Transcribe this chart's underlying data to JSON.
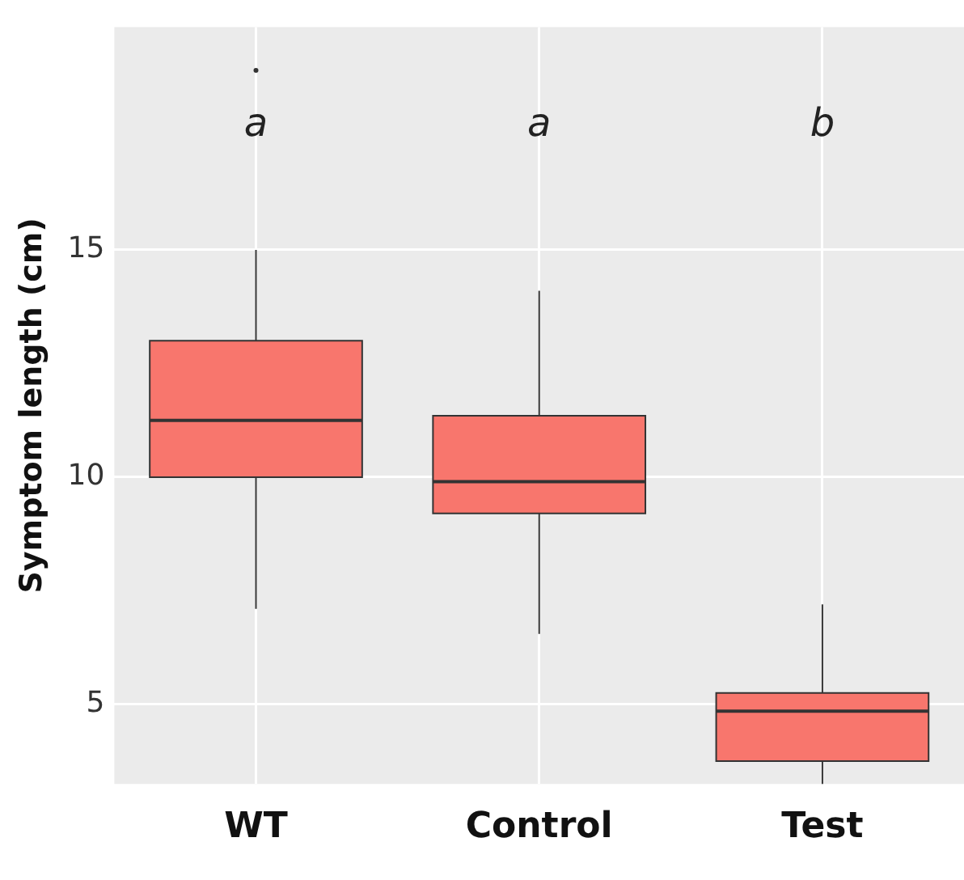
{
  "chart_data": {
    "type": "box",
    "ylabel": "Symptom length (cm)",
    "categories": [
      "WT",
      "Control",
      "Test"
    ],
    "color": "#f8766d",
    "boxes": [
      {
        "low": 7.1,
        "q1": 10.0,
        "median": 11.25,
        "q3": 13.0,
        "high": 15.0,
        "outliers": [
          18.95
        ]
      },
      {
        "low": 6.55,
        "q1": 9.2,
        "median": 9.9,
        "q3": 11.35,
        "high": 14.1
      },
      {
        "low": 3.25,
        "q1": 3.75,
        "median": 4.85,
        "q3": 5.25,
        "high": 7.2
      }
    ],
    "ylim": [
      3.25,
      19.9
    ],
    "yticks": [
      5,
      10,
      15
    ],
    "grid": true,
    "annotations": [
      "a",
      "a",
      "b"
    ]
  }
}
